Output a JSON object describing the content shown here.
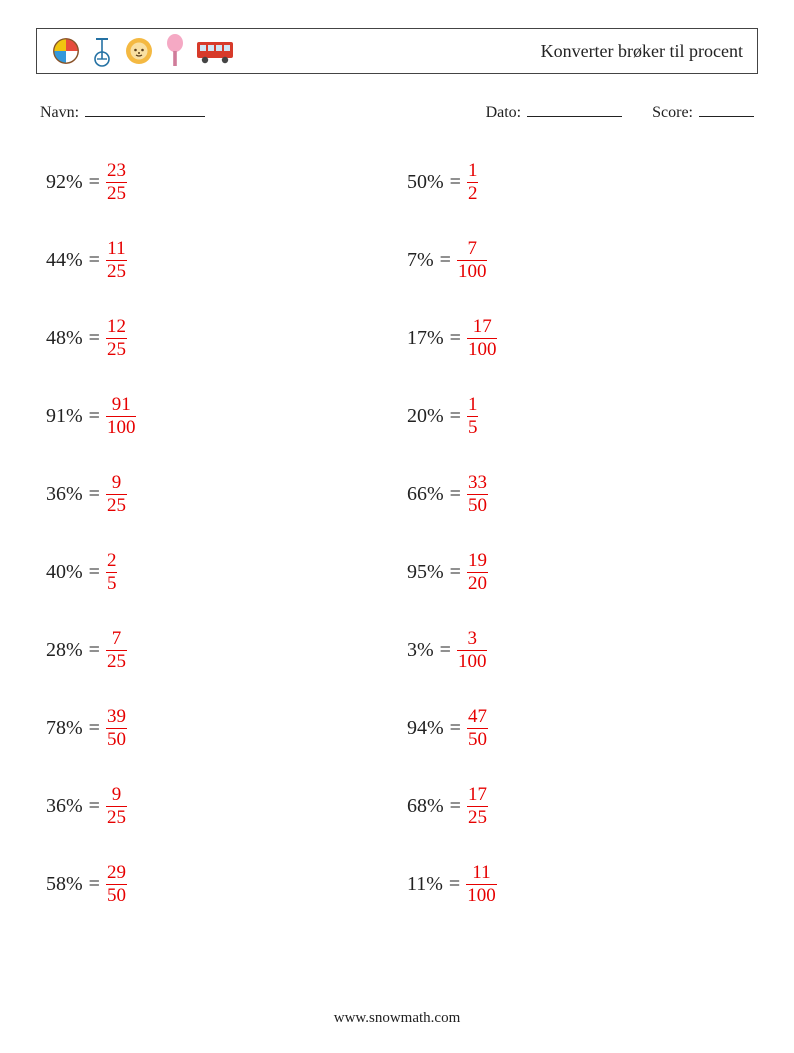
{
  "title": "Konverter brøker til procent",
  "meta": {
    "name_label": "Navn:",
    "date_label": "Dato:",
    "score_label": "Score:"
  },
  "colors": {
    "answer": "#e60000",
    "text": "#222222",
    "border": "#444444",
    "background": "#ffffff"
  },
  "problems_left": [
    {
      "percent": "92%",
      "num": "23",
      "den": "25"
    },
    {
      "percent": "44%",
      "num": "11",
      "den": "25"
    },
    {
      "percent": "48%",
      "num": "12",
      "den": "25"
    },
    {
      "percent": "91%",
      "num": "91",
      "den": "100"
    },
    {
      "percent": "36%",
      "num": "9",
      "den": "25"
    },
    {
      "percent": "40%",
      "num": "2",
      "den": "5"
    },
    {
      "percent": "28%",
      "num": "7",
      "den": "25"
    },
    {
      "percent": "78%",
      "num": "39",
      "den": "50"
    },
    {
      "percent": "36%",
      "num": "9",
      "den": "25"
    },
    {
      "percent": "58%",
      "num": "29",
      "den": "50"
    }
  ],
  "problems_right": [
    {
      "percent": "50%",
      "num": "1",
      "den": "2"
    },
    {
      "percent": "7%",
      "num": "7",
      "den": "100"
    },
    {
      "percent": "17%",
      "num": "17",
      "den": "100"
    },
    {
      "percent": "20%",
      "num": "1",
      "den": "5"
    },
    {
      "percent": "66%",
      "num": "33",
      "den": "50"
    },
    {
      "percent": "95%",
      "num": "19",
      "den": "20"
    },
    {
      "percent": "3%",
      "num": "3",
      "den": "100"
    },
    {
      "percent": "94%",
      "num": "47",
      "den": "50"
    },
    {
      "percent": "68%",
      "num": "17",
      "den": "25"
    },
    {
      "percent": "11%",
      "num": "11",
      "den": "100"
    }
  ],
  "footer": "www.snowmath.com"
}
